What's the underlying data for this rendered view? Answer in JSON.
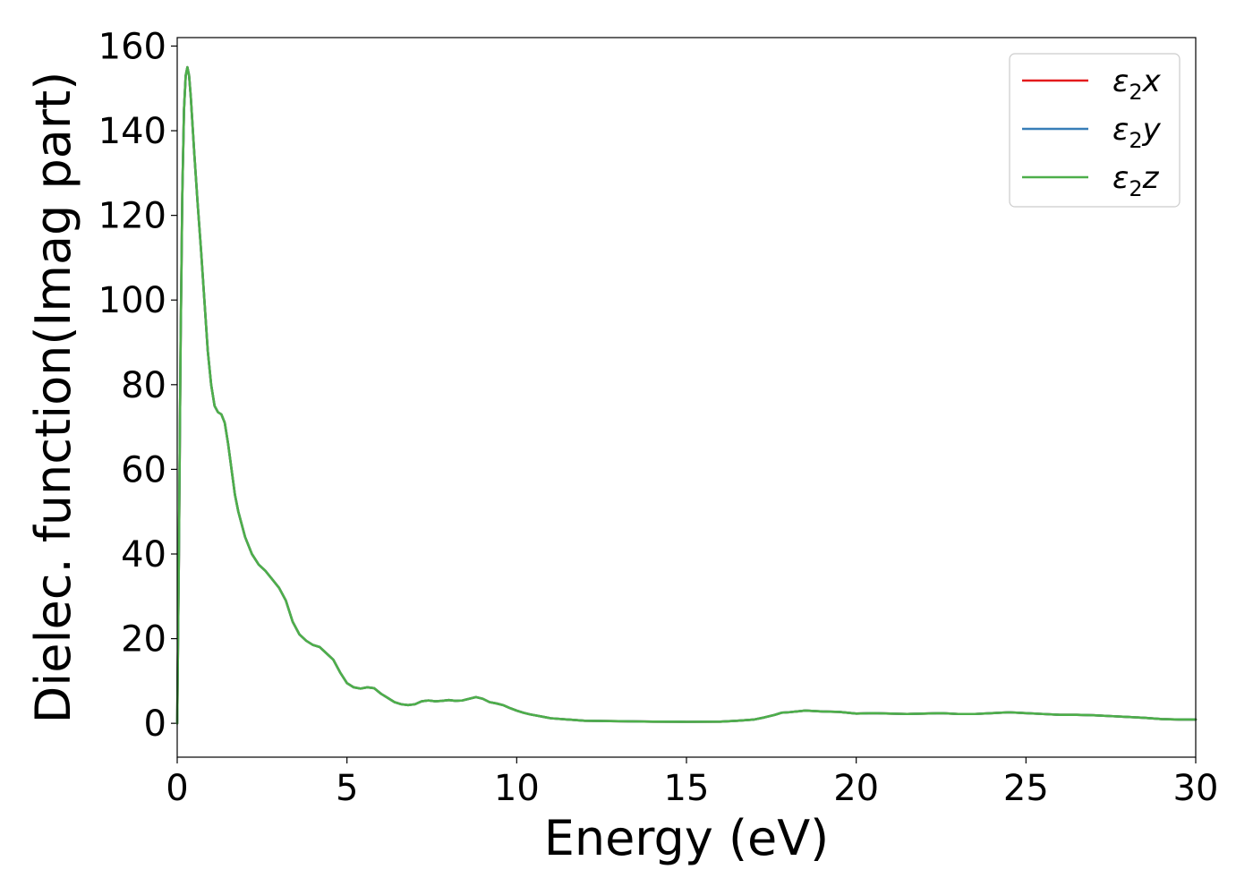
{
  "chart_data": {
    "type": "line",
    "xlabel": "Energy (eV)",
    "ylabel": "Dielec. function(Imag part)",
    "xlim": [
      0,
      30
    ],
    "ylim": [
      -8,
      162
    ],
    "xticks": [
      0,
      5,
      10,
      15,
      20,
      25,
      30
    ],
    "yticks": [
      0,
      20,
      40,
      60,
      80,
      100,
      120,
      140,
      160
    ],
    "grid": false,
    "legend_position": "top-right",
    "series": [
      {
        "name": "ε2x",
        "base": "ε",
        "sub": "2",
        "suffix": "x",
        "color": "#e41a1c",
        "x": [
          0,
          0.05,
          0.1,
          0.15,
          0.2,
          0.25,
          0.3,
          0.35,
          0.4,
          0.5,
          0.6,
          0.7,
          0.8,
          0.9,
          1.0,
          1.1,
          1.2,
          1.3,
          1.4,
          1.5,
          1.6,
          1.7,
          1.8,
          1.9,
          2.0,
          2.2,
          2.4,
          2.6,
          2.8,
          3.0,
          3.2,
          3.4,
          3.6,
          3.8,
          4.0,
          4.2,
          4.4,
          4.6,
          4.8,
          5.0,
          5.2,
          5.4,
          5.6,
          5.8,
          6.0,
          6.2,
          6.4,
          6.6,
          6.8,
          7.0,
          7.2,
          7.4,
          7.6,
          7.8,
          8.0,
          8.2,
          8.4,
          8.6,
          8.8,
          9.0,
          9.2,
          9.4,
          9.6,
          9.8,
          10.0,
          10.2,
          10.4,
          10.6,
          10.8,
          11.0,
          11.5,
          12.0,
          13.0,
          14.0,
          15.0,
          16.0,
          16.5,
          17.0,
          17.3,
          17.6,
          17.8,
          18.0,
          18.5,
          19.0,
          19.5,
          20.0,
          20.5,
          21.0,
          21.5,
          22.0,
          22.5,
          23.0,
          23.5,
          24.0,
          24.5,
          25.0,
          25.5,
          26.0,
          26.5,
          27.0,
          27.5,
          28.0,
          28.5,
          29.0,
          29.5,
          30.0
        ],
        "y": [
          0,
          40,
          90,
          125,
          145,
          153,
          155,
          153,
          148,
          135,
          123,
          112,
          100,
          88,
          80,
          75,
          73.5,
          73,
          71,
          66,
          60,
          54,
          50,
          47,
          44,
          40,
          37.5,
          36,
          34,
          32,
          29,
          24,
          21,
          19.5,
          18.5,
          18,
          16.5,
          15,
          12,
          9.5,
          8.5,
          8.2,
          8.5,
          8.3,
          7,
          6,
          5,
          4.5,
          4.3,
          4.5,
          5.2,
          5.4,
          5.2,
          5.3,
          5.5,
          5.3,
          5.4,
          5.8,
          6.2,
          5.8,
          5,
          4.7,
          4.3,
          3.6,
          3,
          2.5,
          2.1,
          1.8,
          1.5,
          1.2,
          0.9,
          0.6,
          0.5,
          0.4,
          0.35,
          0.4,
          0.6,
          0.9,
          1.4,
          2.0,
          2.5,
          2.6,
          3.0,
          2.8,
          2.7,
          2.3,
          2.4,
          2.3,
          2.2,
          2.3,
          2.4,
          2.2,
          2.2,
          2.4,
          2.6,
          2.4,
          2.2,
          2.0,
          2.0,
          1.9,
          1.7,
          1.5,
          1.3,
          1.0,
          0.9,
          0.9
        ]
      },
      {
        "name": "ε2y",
        "base": "ε",
        "sub": "2",
        "suffix": "y",
        "color": "#377eb8",
        "x": [
          0,
          0.05,
          0.1,
          0.15,
          0.2,
          0.25,
          0.3,
          0.35,
          0.4,
          0.5,
          0.6,
          0.7,
          0.8,
          0.9,
          1.0,
          1.1,
          1.2,
          1.3,
          1.4,
          1.5,
          1.6,
          1.7,
          1.8,
          1.9,
          2.0,
          2.2,
          2.4,
          2.6,
          2.8,
          3.0,
          3.2,
          3.4,
          3.6,
          3.8,
          4.0,
          4.2,
          4.4,
          4.6,
          4.8,
          5.0,
          5.2,
          5.4,
          5.6,
          5.8,
          6.0,
          6.2,
          6.4,
          6.6,
          6.8,
          7.0,
          7.2,
          7.4,
          7.6,
          7.8,
          8.0,
          8.2,
          8.4,
          8.6,
          8.8,
          9.0,
          9.2,
          9.4,
          9.6,
          9.8,
          10.0,
          10.2,
          10.4,
          10.6,
          10.8,
          11.0,
          11.5,
          12.0,
          13.0,
          14.0,
          15.0,
          16.0,
          16.5,
          17.0,
          17.3,
          17.6,
          17.8,
          18.0,
          18.5,
          19.0,
          19.5,
          20.0,
          20.5,
          21.0,
          21.5,
          22.0,
          22.5,
          23.0,
          23.5,
          24.0,
          24.5,
          25.0,
          25.5,
          26.0,
          26.5,
          27.0,
          27.5,
          28.0,
          28.5,
          29.0,
          29.5,
          30.0
        ],
        "y": [
          0,
          40,
          90,
          125,
          145,
          153,
          155,
          153,
          148,
          135,
          123,
          112,
          100,
          88,
          80,
          75,
          73.5,
          73,
          71,
          66,
          60,
          54,
          50,
          47,
          44,
          40,
          37.5,
          36,
          34,
          32,
          29,
          24,
          21,
          19.5,
          18.5,
          18,
          16.5,
          15,
          12,
          9.5,
          8.5,
          8.2,
          8.5,
          8.3,
          7,
          6,
          5,
          4.5,
          4.3,
          4.5,
          5.2,
          5.4,
          5.2,
          5.3,
          5.5,
          5.3,
          5.4,
          5.8,
          6.2,
          5.8,
          5,
          4.7,
          4.3,
          3.6,
          3,
          2.5,
          2.1,
          1.8,
          1.5,
          1.2,
          0.9,
          0.6,
          0.5,
          0.4,
          0.35,
          0.4,
          0.6,
          0.9,
          1.4,
          2.0,
          2.5,
          2.6,
          3.0,
          2.8,
          2.7,
          2.3,
          2.4,
          2.3,
          2.2,
          2.3,
          2.4,
          2.2,
          2.2,
          2.4,
          2.6,
          2.4,
          2.2,
          2.0,
          2.0,
          1.9,
          1.7,
          1.5,
          1.3,
          1.0,
          0.9,
          0.9
        ]
      },
      {
        "name": "ε2z",
        "base": "ε",
        "sub": "2",
        "suffix": "z",
        "color": "#4daf4a",
        "x": [
          0,
          0.05,
          0.1,
          0.15,
          0.2,
          0.25,
          0.3,
          0.35,
          0.4,
          0.5,
          0.6,
          0.7,
          0.8,
          0.9,
          1.0,
          1.1,
          1.2,
          1.3,
          1.4,
          1.5,
          1.6,
          1.7,
          1.8,
          1.9,
          2.0,
          2.2,
          2.4,
          2.6,
          2.8,
          3.0,
          3.2,
          3.4,
          3.6,
          3.8,
          4.0,
          4.2,
          4.4,
          4.6,
          4.8,
          5.0,
          5.2,
          5.4,
          5.6,
          5.8,
          6.0,
          6.2,
          6.4,
          6.6,
          6.8,
          7.0,
          7.2,
          7.4,
          7.6,
          7.8,
          8.0,
          8.2,
          8.4,
          8.6,
          8.8,
          9.0,
          9.2,
          9.4,
          9.6,
          9.8,
          10.0,
          10.2,
          10.4,
          10.6,
          10.8,
          11.0,
          11.5,
          12.0,
          13.0,
          14.0,
          15.0,
          16.0,
          16.5,
          17.0,
          17.3,
          17.6,
          17.8,
          18.0,
          18.5,
          19.0,
          19.5,
          20.0,
          20.5,
          21.0,
          21.5,
          22.0,
          22.5,
          23.0,
          23.5,
          24.0,
          24.5,
          25.0,
          25.5,
          26.0,
          26.5,
          27.0,
          27.5,
          28.0,
          28.5,
          29.0,
          29.5,
          30.0
        ],
        "y": [
          0,
          40,
          90,
          125,
          145,
          153,
          155,
          153,
          148,
          135,
          123,
          112,
          100,
          88,
          80,
          75,
          73.5,
          73,
          71,
          66,
          60,
          54,
          50,
          47,
          44,
          40,
          37.5,
          36,
          34,
          32,
          29,
          24,
          21,
          19.5,
          18.5,
          18,
          16.5,
          15,
          12,
          9.5,
          8.5,
          8.2,
          8.5,
          8.3,
          7,
          6,
          5,
          4.5,
          4.3,
          4.5,
          5.2,
          5.4,
          5.2,
          5.3,
          5.5,
          5.3,
          5.4,
          5.8,
          6.2,
          5.8,
          5,
          4.7,
          4.3,
          3.6,
          3,
          2.5,
          2.1,
          1.8,
          1.5,
          1.2,
          0.9,
          0.6,
          0.5,
          0.4,
          0.35,
          0.4,
          0.6,
          0.9,
          1.4,
          2.0,
          2.5,
          2.6,
          3.0,
          2.8,
          2.7,
          2.3,
          2.4,
          2.3,
          2.2,
          2.3,
          2.4,
          2.2,
          2.2,
          2.4,
          2.6,
          2.4,
          2.2,
          2.0,
          2.0,
          1.9,
          1.7,
          1.5,
          1.3,
          1.0,
          0.9,
          0.9
        ]
      }
    ]
  }
}
